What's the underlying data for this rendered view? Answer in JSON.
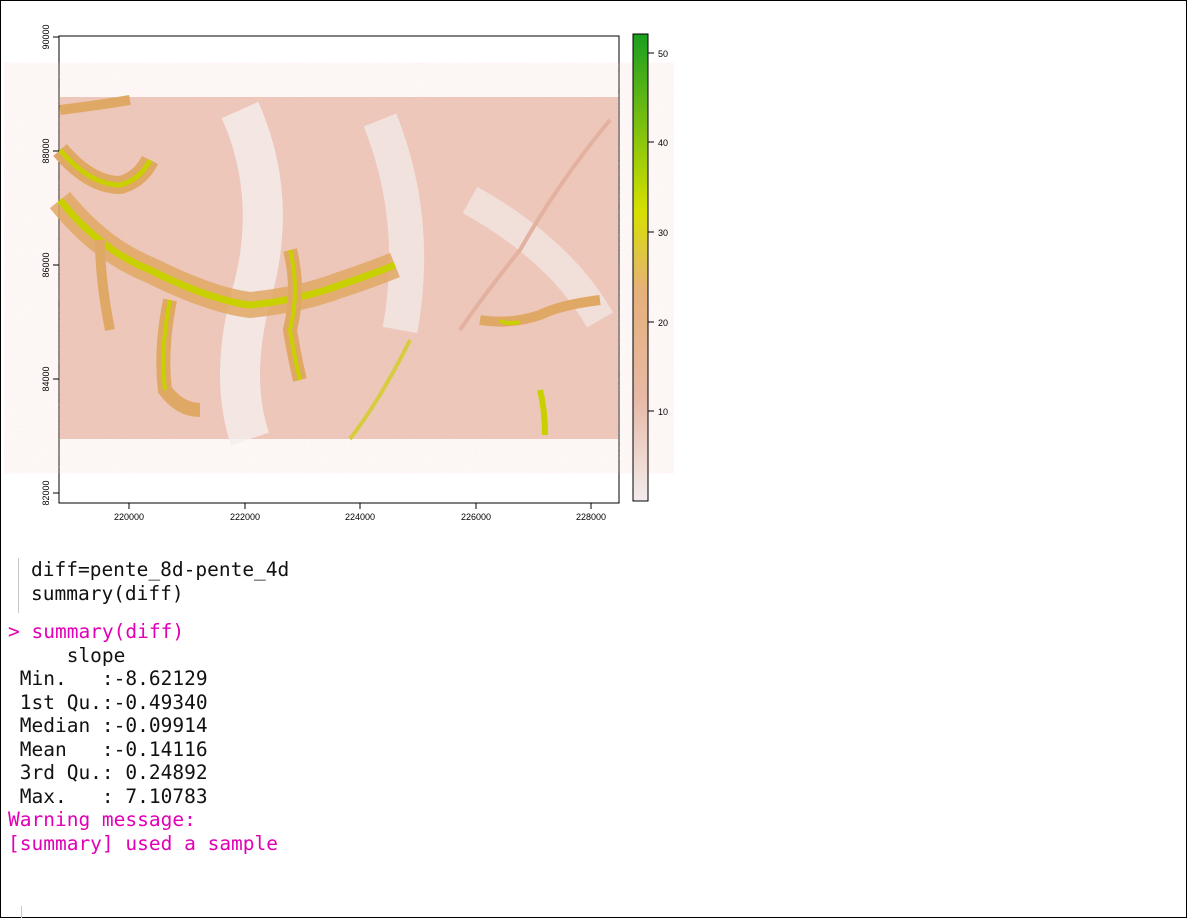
{
  "plot": {
    "x_ticks": [
      "220000",
      "222000",
      "224000",
      "226000",
      "228000"
    ],
    "y_ticks": [
      "82000",
      "84000",
      "86000",
      "88000",
      "90000"
    ],
    "legend_ticks": [
      "10",
      "20",
      "30",
      "40",
      "50"
    ],
    "colors": {
      "low": "#f2ecec",
      "mid": "#e6b07a",
      "high": "#d7e000",
      "top": "#1a9e20"
    }
  },
  "editor": {
    "lines": [
      {
        "text": "diff=pente_8d-pente_4d"
      },
      {
        "text": "summary(diff)"
      }
    ]
  },
  "console": {
    "command": "> summary(diff)",
    "header": "     slope",
    "rows": [
      " Min.   :-8.62129",
      " 1st Qu.:-0.49340",
      " Median :-0.09914",
      " Mean   :-0.14116",
      " 3rd Qu.: 0.24892",
      " Max.   : 7.10783"
    ],
    "warning_title": "Warning message:",
    "warning_text": "[summary] used a sample"
  }
}
